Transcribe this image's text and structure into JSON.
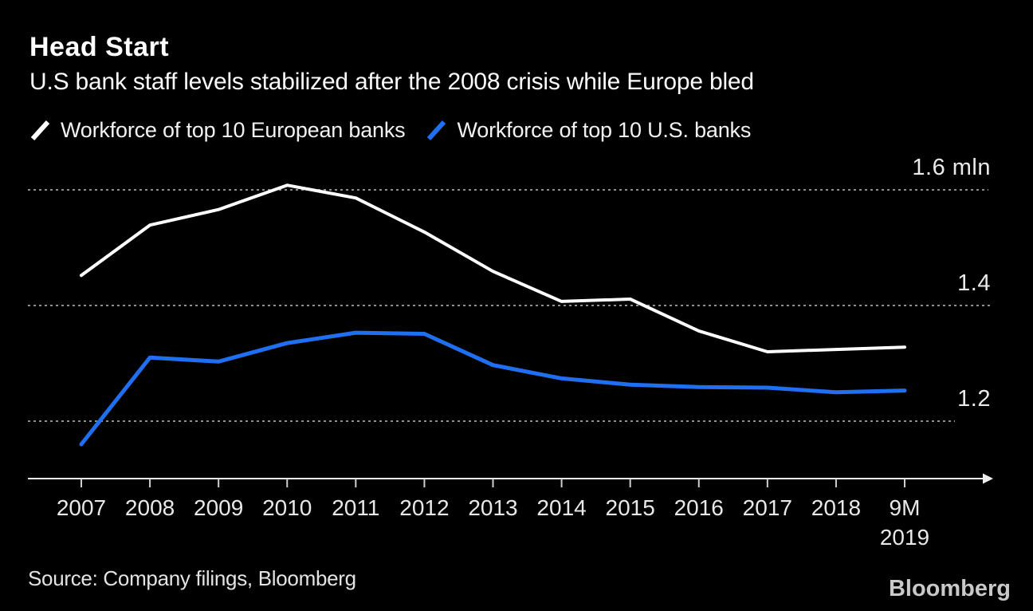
{
  "header": {
    "title": "Head Start",
    "subtitle": "U.S bank staff levels stabilized after the 2008 crisis while Europe bled"
  },
  "legend": {
    "items": [
      {
        "label": "Workforce of top 10 European banks",
        "color": "#ffffff"
      },
      {
        "label": "Workforce of top 10 U.S. banks",
        "color": "#1f6ff0"
      }
    ]
  },
  "chart_data": {
    "type": "line",
    "title": "Head Start",
    "subtitle": "U.S bank staff levels stabilized after the 2008 crisis while Europe bled",
    "unit": "mln employees",
    "categories": [
      "2007",
      "2008",
      "2009",
      "2010",
      "2011",
      "2012",
      "2013",
      "2014",
      "2015",
      "2016",
      "2017",
      "2018",
      "9M 2019"
    ],
    "x_tick_labels": [
      "2007",
      "2008",
      "2009",
      "2010",
      "2011",
      "2012",
      "2013",
      "2014",
      "2015",
      "2016",
      "2017",
      "2018",
      "9M\n2019"
    ],
    "series": [
      {
        "name": "Workforce of top 10 European banks",
        "color": "#ffffff",
        "values": [
          1.452,
          1.539,
          1.566,
          1.608,
          1.586,
          1.527,
          1.459,
          1.407,
          1.411,
          1.356,
          1.32,
          1.324,
          1.328
        ]
      },
      {
        "name": "Workforce of top 10 U.S. banks",
        "color": "#1f6ff0",
        "values": [
          1.16,
          1.31,
          1.303,
          1.335,
          1.353,
          1.351,
          1.297,
          1.274,
          1.263,
          1.259,
          1.258,
          1.25,
          1.253
        ]
      }
    ],
    "y_ticks": [
      {
        "value": 1.6,
        "label": "1.6 mln"
      },
      {
        "value": 1.4,
        "label": "1.4"
      },
      {
        "value": 1.2,
        "label": "1.2"
      }
    ],
    "ylim": [
      1.1,
      1.65
    ],
    "grid": "horizontal dotted",
    "legend_position": "top",
    "background": "#000000"
  },
  "footer": {
    "source": "Source: Company filings, Bloomberg",
    "logo": "Bloomberg"
  }
}
